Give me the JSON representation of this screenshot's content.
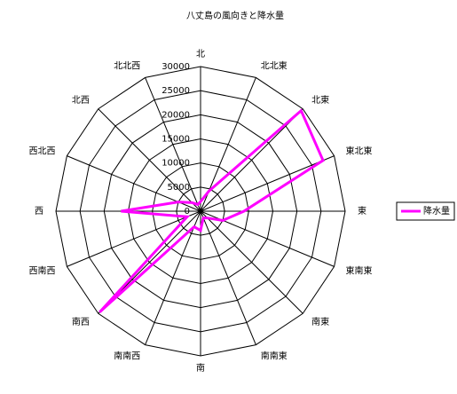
{
  "chart_data": {
    "type": "radar",
    "title": "八丈島の風向きと降水量",
    "categories": [
      "北",
      "北北東",
      "北東",
      "東北東",
      "東",
      "東南東",
      "南東",
      "南南東",
      "南",
      "南南西",
      "南西",
      "西南西",
      "西",
      "西北西",
      "北西",
      "北北西"
    ],
    "series": [
      {
        "name": "降水量",
        "color": "#ff00ff",
        "values": [
          2000,
          4500,
          29500,
          27500,
          9000,
          5000,
          2000,
          1500,
          4000,
          3500,
          29600,
          3000,
          16500,
          5000,
          2500,
          1500
        ]
      }
    ],
    "ylim": [
      0,
      30000
    ],
    "yticks": [
      0,
      5000,
      10000,
      15000,
      20000,
      25000,
      30000
    ],
    "grid": true,
    "legend": "right"
  }
}
